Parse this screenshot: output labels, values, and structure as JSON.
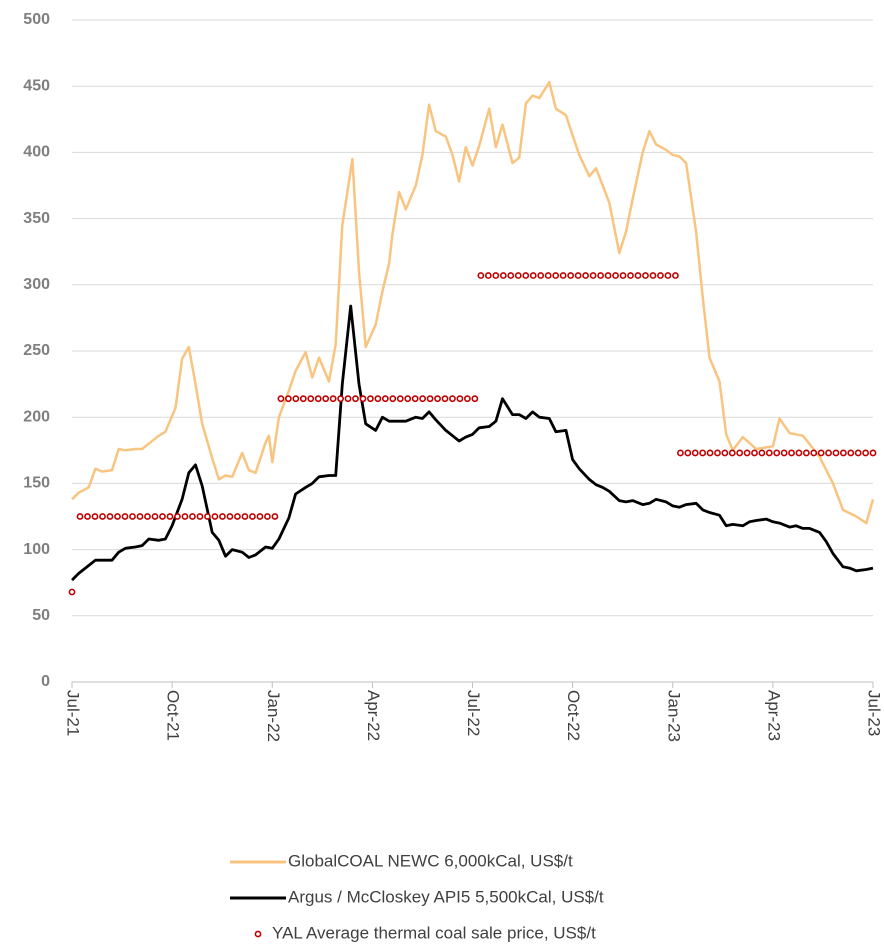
{
  "chart_data": {
    "type": "line",
    "xlim": [
      0,
      24
    ],
    "xticks": [
      {
        "value": 0,
        "label": "Jul-21"
      },
      {
        "value": 3,
        "label": "Oct-21"
      },
      {
        "value": 6,
        "label": "Jan-22"
      },
      {
        "value": 9,
        "label": "Apr-22"
      },
      {
        "value": 12,
        "label": "Jul-22"
      },
      {
        "value": 15,
        "label": "Oct-22"
      },
      {
        "value": 18,
        "label": "Jan-23"
      },
      {
        "value": 21,
        "label": "Apr-23"
      },
      {
        "value": 24,
        "label": "Jul-23"
      }
    ],
    "ylim": [
      0,
      500
    ],
    "yticks": [
      0,
      50,
      100,
      150,
      200,
      250,
      300,
      350,
      400,
      450,
      500
    ],
    "grid": true,
    "legend": "bottom",
    "series": [
      {
        "name": "GlobalCOAL NEWC 6,000kCal, US$/t",
        "color": "#f9c47f",
        "x": [
          0,
          0.2,
          0.5,
          0.7,
          0.9,
          1.2,
          1.4,
          1.6,
          1.9,
          2.1,
          2.3,
          2.6,
          2.8,
          3.1,
          3.3,
          3.5,
          3.7,
          3.9,
          4.2,
          4.4,
          4.6,
          4.8,
          5.1,
          5.3,
          5.5,
          5.8,
          5.9,
          6.0,
          6.2,
          6.5,
          6.7,
          7.0,
          7.2,
          7.4,
          7.7,
          7.9,
          8.1,
          8.4,
          8.6,
          8.8,
          9.1,
          9.3,
          9.5,
          9.6,
          9.8,
          10.0,
          10.3,
          10.5,
          10.7,
          10.9,
          11.2,
          11.4,
          11.6,
          11.8,
          12.0,
          12.2,
          12.5,
          12.7,
          12.9,
          13.2,
          13.4,
          13.6,
          13.8,
          14.0,
          14.3,
          14.5,
          14.8,
          15.0,
          15.2,
          15.5,
          15.7,
          15.9,
          16.1,
          16.4,
          16.6,
          16.8,
          17.1,
          17.3,
          17.5,
          17.8,
          18.0,
          18.2,
          18.4,
          18.7,
          18.9,
          19.1,
          19.4,
          19.6,
          19.8,
          20.1,
          20.5,
          21.0,
          21.2,
          21.5,
          21.9,
          22.4,
          22.8,
          23.1,
          23.5,
          23.8,
          24
        ],
        "values": [
          138,
          143,
          147,
          161,
          159,
          160,
          176,
          175,
          176,
          176,
          180,
          186,
          189,
          207,
          244,
          253,
          225,
          195,
          169,
          153,
          156,
          155,
          173,
          160,
          158,
          181,
          186,
          166,
          200,
          220,
          235,
          249,
          230,
          245,
          227,
          255,
          345,
          395,
          310,
          253,
          270,
          295,
          316,
          338,
          370,
          357,
          375,
          398,
          436,
          416,
          412,
          398,
          378,
          404,
          390,
          405,
          433,
          404,
          421,
          392,
          396,
          437,
          443,
          441,
          453,
          433,
          428,
          413,
          398,
          382,
          388,
          375,
          362,
          324,
          340,
          365,
          400,
          416,
          406,
          402,
          398,
          397,
          392,
          340,
          290,
          245,
          227,
          187,
          175,
          185,
          176,
          178,
          199,
          188,
          186,
          170,
          150,
          130,
          125,
          120,
          138
        ]
      },
      {
        "name": "Argus / McCloskey API5 5,500kCal, US$/t",
        "color": "#000000",
        "x": [
          0,
          0.2,
          0.5,
          0.7,
          0.9,
          1.2,
          1.4,
          1.6,
          1.9,
          2.1,
          2.3,
          2.6,
          2.8,
          3.0,
          3.3,
          3.5,
          3.7,
          3.9,
          4.2,
          4.4,
          4.6,
          4.8,
          5.1,
          5.3,
          5.5,
          5.8,
          6.0,
          6.2,
          6.5,
          6.7,
          7.0,
          7.2,
          7.4,
          7.7,
          7.9,
          8.1,
          8.35,
          8.6,
          8.8,
          9.1,
          9.3,
          9.5,
          9.8,
          10.0,
          10.3,
          10.5,
          10.7,
          10.9,
          11.2,
          11.4,
          11.6,
          11.8,
          12.0,
          12.2,
          12.5,
          12.7,
          12.9,
          13.2,
          13.4,
          13.6,
          13.8,
          14.0,
          14.3,
          14.5,
          14.8,
          15.0,
          15.2,
          15.5,
          15.7,
          15.9,
          16.1,
          16.4,
          16.6,
          16.8,
          17.1,
          17.3,
          17.5,
          17.8,
          18.0,
          18.2,
          18.4,
          18.7,
          18.9,
          19.1,
          19.4,
          19.6,
          19.8,
          20.1,
          20.3,
          20.5,
          20.8,
          21.0,
          21.2,
          21.5,
          21.7,
          21.9,
          22.1,
          22.4,
          22.6,
          22.8,
          23.1,
          23.3,
          23.5,
          23.8,
          24.0
        ],
        "values": [
          77,
          82,
          88,
          92,
          92,
          92,
          98,
          101,
          102,
          103,
          108,
          107,
          108,
          118,
          138,
          158,
          164,
          148,
          113,
          107,
          95,
          100,
          98,
          94,
          96,
          102,
          101,
          108,
          124,
          142,
          147,
          150,
          155,
          156,
          156,
          225,
          284,
          225,
          195,
          190,
          200,
          197,
          197,
          197,
          200,
          199,
          204,
          198,
          190,
          186,
          182,
          185,
          187,
          192,
          193,
          197,
          214,
          202,
          202,
          199,
          204,
          200,
          199,
          189,
          190,
          168,
          161,
          153,
          149,
          147,
          144,
          137,
          136,
          137,
          134,
          135,
          138,
          136,
          133,
          132,
          134,
          135,
          130,
          128,
          126,
          118,
          119,
          118,
          121,
          122,
          123,
          121,
          120,
          117,
          118,
          116,
          116,
          113,
          106,
          97,
          87,
          86,
          84,
          85,
          86
        ]
      },
      {
        "name": "YAL Average thermal coal sale price, US$/t",
        "color": "#c00000",
        "style": "dotted-segments",
        "segments": [
          {
            "x": [
              0,
              0
            ],
            "value": 68
          },
          {
            "x": [
              0.24,
              6.08
            ],
            "value": 125
          },
          {
            "x": [
              6.26,
              12.07
            ],
            "value": 214
          },
          {
            "x": [
              12.25,
              18.08
            ],
            "value": 307
          },
          {
            "x": [
              18.23,
              24
            ],
            "value": 173
          }
        ]
      }
    ]
  }
}
